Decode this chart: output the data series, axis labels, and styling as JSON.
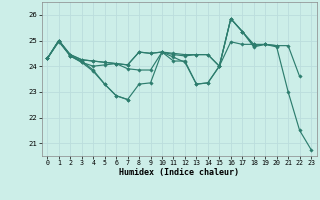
{
  "xlabel": "Humidex (Indice chaleur)",
  "xlim": [
    -0.5,
    23.5
  ],
  "ylim": [
    20.5,
    26.5
  ],
  "yticks": [
    21,
    22,
    23,
    24,
    25,
    26
  ],
  "xticks": [
    0,
    1,
    2,
    3,
    4,
    5,
    6,
    7,
    8,
    9,
    10,
    11,
    12,
    13,
    14,
    15,
    16,
    17,
    18,
    19,
    20,
    21,
    22,
    23
  ],
  "bg_color": "#cceee8",
  "grid_color": "#bbdddd",
  "line_color": "#2d7d6e",
  "series": [
    [
      24.3,
      25.0,
      24.4,
      24.15,
      23.8,
      23.3,
      22.85,
      22.7,
      null,
      null,
      null,
      null,
      null,
      null,
      null,
      null,
      null,
      null,
      null,
      null,
      null,
      null,
      null,
      null
    ],
    [
      24.3,
      25.0,
      24.4,
      24.15,
      24.0,
      24.05,
      24.1,
      23.9,
      23.85,
      23.85,
      24.55,
      24.35,
      24.15,
      23.3,
      23.35,
      24.0,
      25.85,
      25.35,
      24.8,
      24.85,
      24.8,
      24.8,
      23.6,
      null
    ],
    [
      24.3,
      25.0,
      24.45,
      24.25,
      24.2,
      24.15,
      24.1,
      24.05,
      24.55,
      24.5,
      24.55,
      24.45,
      24.4,
      24.45,
      24.45,
      24.0,
      24.95,
      24.85,
      24.85,
      24.85,
      24.8,
      null,
      null,
      null
    ],
    [
      24.3,
      25.0,
      24.45,
      24.25,
      24.2,
      24.15,
      24.1,
      24.05,
      24.55,
      24.5,
      24.55,
      24.5,
      24.45,
      24.45,
      24.45,
      24.0,
      25.85,
      25.35,
      24.85,
      null,
      null,
      null,
      null,
      null
    ]
  ],
  "series2": [
    24.3,
    24.95,
    24.4,
    24.2,
    23.85,
    23.3,
    22.85,
    22.7,
    23.3,
    23.35,
    24.55,
    24.2,
    24.2,
    23.3,
    23.35,
    24.0,
    25.85,
    25.35,
    24.75,
    24.85,
    24.75,
    23.0,
    21.5,
    20.75
  ]
}
